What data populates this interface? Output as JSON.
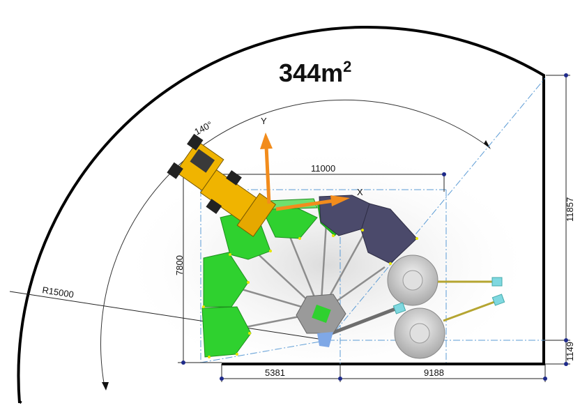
{
  "diagram": {
    "area": {
      "value": "344m",
      "superscript": "2"
    },
    "angle_label": "140°",
    "radius_label": "R15000",
    "dimensions": {
      "width_top": "11000",
      "height_left": "7800",
      "height_right": "11857",
      "small_right": "1149",
      "bottom_left": "5381",
      "bottom_right": "9188"
    },
    "axes": {
      "y": "Y",
      "x": "X"
    },
    "colors": {
      "outline": "#000000",
      "centerline": "#5b9bd5",
      "green_module": "#2fd12f",
      "dark_module": "#4b4a6b",
      "loader": "#f0b400",
      "axis_arrow": "#f28c1c"
    }
  }
}
